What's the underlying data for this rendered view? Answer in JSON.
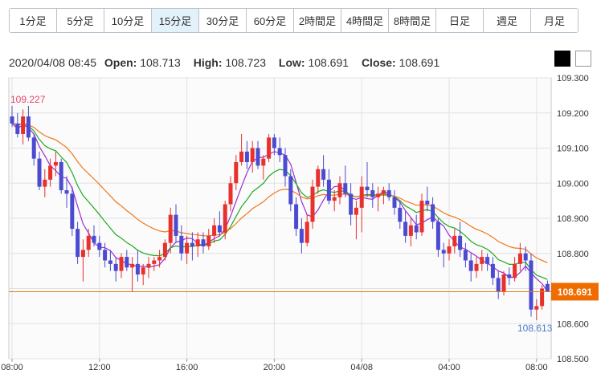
{
  "tabs": [
    "1分足",
    "5分足",
    "10分足",
    "15分足",
    "30分足",
    "60分足",
    "2時間足",
    "4時間足",
    "8時間足",
    "日足",
    "週足",
    "月足"
  ],
  "active_tab": "15分足",
  "info": {
    "datetime": "2020/04/08 08:45",
    "open_label": "Open:",
    "open": "108.713",
    "high_label": "High:",
    "high": "108.723",
    "low_label": "Low:",
    "low": "108.691",
    "close_label": "Close:",
    "close": "108.691"
  },
  "theme_buttons": [
    "black",
    "white"
  ],
  "colors": {
    "up": "#e8302c",
    "down": "#4b4bd1",
    "ma_short": "#9b2fd6",
    "ma_mid": "#1faa1f",
    "ma_long": "#f07818",
    "price_line": "#e07b1a",
    "price_tag": "#ef6c00",
    "high_label": "#e2456b",
    "low_label": "#4a7bc9"
  },
  "chart_data": {
    "type": "candlestick",
    "ylim": [
      108.5,
      109.3
    ],
    "y_ticks": [
      "109.300",
      "109.200",
      "109.100",
      "109.000",
      "108.900",
      "108.800",
      "108.700",
      "108.600",
      "108.500"
    ],
    "x_ticks": [
      "08:00",
      "12:00",
      "16:00",
      "20:00",
      "04/08",
      "04:00",
      "08:00"
    ],
    "x_tick_index": [
      0,
      16,
      32,
      48,
      64,
      80,
      96
    ],
    "current_price": "108.691",
    "high_marker": "109.227",
    "low_marker": "108.613",
    "candles": [
      [
        109.19,
        109.22,
        109.16,
        109.17
      ],
      [
        109.17,
        109.2,
        109.13,
        109.14
      ],
      [
        109.14,
        109.21,
        109.11,
        109.19
      ],
      [
        109.19,
        109.22,
        109.12,
        109.13
      ],
      [
        109.13,
        109.14,
        109.05,
        109.07
      ],
      [
        109.07,
        109.09,
        108.98,
        108.99
      ],
      [
        108.99,
        109.04,
        108.96,
        109.01
      ],
      [
        109.01,
        109.07,
        108.99,
        109.05
      ],
      [
        109.05,
        109.09,
        109.02,
        109.06
      ],
      [
        109.06,
        109.07,
        108.97,
        108.98
      ],
      [
        108.98,
        109.02,
        108.93,
        108.97
      ],
      [
        108.97,
        108.99,
        108.85,
        108.87
      ],
      [
        108.87,
        108.89,
        108.77,
        108.79
      ],
      [
        108.79,
        108.84,
        108.72,
        108.81
      ],
      [
        108.81,
        108.87,
        108.79,
        108.85
      ],
      [
        108.85,
        108.88,
        108.82,
        108.83
      ],
      [
        108.83,
        108.85,
        108.79,
        108.81
      ],
      [
        108.81,
        108.83,
        108.76,
        108.78
      ],
      [
        108.78,
        108.81,
        108.75,
        108.77
      ],
      [
        108.77,
        108.79,
        108.72,
        108.75
      ],
      [
        108.75,
        108.8,
        108.73,
        108.79
      ],
      [
        108.79,
        108.81,
        108.75,
        108.76
      ],
      [
        108.76,
        108.79,
        108.69,
        108.77
      ],
      [
        108.77,
        108.81,
        108.72,
        108.74
      ],
      [
        108.74,
        108.77,
        108.71,
        108.76
      ],
      [
        108.76,
        108.79,
        108.73,
        108.77
      ],
      [
        108.77,
        108.79,
        108.75,
        108.78
      ],
      [
        108.78,
        108.81,
        108.76,
        108.79
      ],
      [
        108.79,
        108.84,
        108.78,
        108.83
      ],
      [
        108.83,
        108.93,
        108.8,
        108.91
      ],
      [
        108.91,
        108.94,
        108.83,
        108.85
      ],
      [
        108.85,
        108.88,
        108.78,
        108.8
      ],
      [
        108.8,
        108.85,
        108.77,
        108.83
      ],
      [
        108.83,
        108.86,
        108.78,
        108.82
      ],
      [
        108.82,
        108.86,
        108.79,
        108.84
      ],
      [
        108.84,
        108.86,
        108.8,
        108.82
      ],
      [
        108.82,
        108.87,
        108.81,
        108.85
      ],
      [
        108.85,
        108.9,
        108.83,
        108.88
      ],
      [
        108.88,
        108.92,
        108.85,
        108.86
      ],
      [
        108.86,
        108.95,
        108.84,
        108.94
      ],
      [
        108.94,
        109.02,
        108.92,
        109.0
      ],
      [
        109.0,
        109.08,
        108.98,
        109.06
      ],
      [
        109.06,
        109.14,
        109.05,
        109.09
      ],
      [
        109.09,
        109.12,
        109.04,
        109.06
      ],
      [
        109.06,
        109.12,
        109.03,
        109.1
      ],
      [
        109.1,
        109.12,
        109.04,
        109.05
      ],
      [
        109.05,
        109.08,
        109.01,
        109.07
      ],
      [
        109.07,
        109.14,
        109.06,
        109.13
      ],
      [
        109.13,
        109.14,
        109.08,
        109.1
      ],
      [
        109.1,
        109.13,
        109.06,
        109.08
      ],
      [
        109.08,
        109.1,
        108.99,
        109.02
      ],
      [
        109.02,
        109.04,
        108.92,
        108.94
      ],
      [
        108.94,
        108.96,
        108.85,
        108.87
      ],
      [
        108.87,
        108.9,
        108.8,
        108.83
      ],
      [
        108.83,
        108.91,
        108.82,
        108.89
      ],
      [
        108.89,
        109.01,
        108.87,
        108.99
      ],
      [
        108.99,
        109.05,
        108.97,
        109.04
      ],
      [
        109.04,
        109.08,
        108.99,
        109.01
      ],
      [
        109.01,
        109.04,
        108.94,
        108.95
      ],
      [
        108.95,
        108.98,
        108.92,
        108.96
      ],
      [
        108.96,
        109.02,
        108.94,
        109.0
      ],
      [
        109.0,
        109.05,
        108.96,
        108.97
      ],
      [
        108.97,
        109.0,
        108.88,
        108.91
      ],
      [
        108.91,
        108.95,
        108.84,
        108.93
      ],
      [
        108.93,
        109.02,
        108.86,
        108.99
      ],
      [
        108.99,
        109.06,
        108.96,
        108.98
      ],
      [
        108.98,
        109.0,
        108.93,
        108.96
      ],
      [
        108.96,
        108.99,
        108.92,
        108.97
      ],
      [
        108.97,
        108.99,
        108.94,
        108.98
      ],
      [
        108.98,
        109.0,
        108.95,
        108.96
      ],
      [
        108.96,
        108.98,
        108.91,
        108.93
      ],
      [
        108.93,
        108.95,
        108.87,
        108.89
      ],
      [
        108.89,
        108.92,
        108.83,
        108.85
      ],
      [
        108.85,
        108.9,
        108.82,
        108.88
      ],
      [
        108.88,
        108.91,
        108.84,
        108.86
      ],
      [
        108.86,
        108.97,
        108.85,
        108.95
      ],
      [
        108.95,
        108.99,
        108.92,
        108.94
      ],
      [
        108.94,
        108.96,
        108.87,
        108.89
      ],
      [
        108.89,
        108.9,
        108.79,
        108.81
      ],
      [
        108.81,
        108.83,
        108.76,
        108.8
      ],
      [
        108.8,
        108.84,
        108.78,
        108.82
      ],
      [
        108.82,
        108.87,
        108.8,
        108.85
      ],
      [
        108.85,
        108.89,
        108.79,
        108.81
      ],
      [
        108.81,
        108.83,
        108.76,
        108.78
      ],
      [
        108.78,
        108.8,
        108.72,
        108.75
      ],
      [
        108.75,
        108.79,
        108.73,
        108.77
      ],
      [
        108.77,
        108.81,
        108.75,
        108.79
      ],
      [
        108.79,
        108.8,
        108.75,
        108.77
      ],
      [
        108.77,
        108.79,
        108.71,
        108.73
      ],
      [
        108.73,
        108.75,
        108.67,
        108.69
      ],
      [
        108.69,
        108.75,
        108.68,
        108.74
      ],
      [
        108.74,
        108.76,
        108.71,
        108.73
      ],
      [
        108.73,
        108.79,
        108.72,
        108.77
      ],
      [
        108.77,
        108.83,
        108.75,
        108.8
      ],
      [
        108.8,
        108.82,
        108.75,
        108.78
      ],
      [
        108.78,
        108.8,
        108.62,
        108.64
      ],
      [
        108.64,
        108.67,
        108.61,
        108.65
      ],
      [
        108.65,
        108.71,
        108.64,
        108.7
      ],
      [
        108.713,
        108.723,
        108.691,
        108.691
      ]
    ]
  }
}
